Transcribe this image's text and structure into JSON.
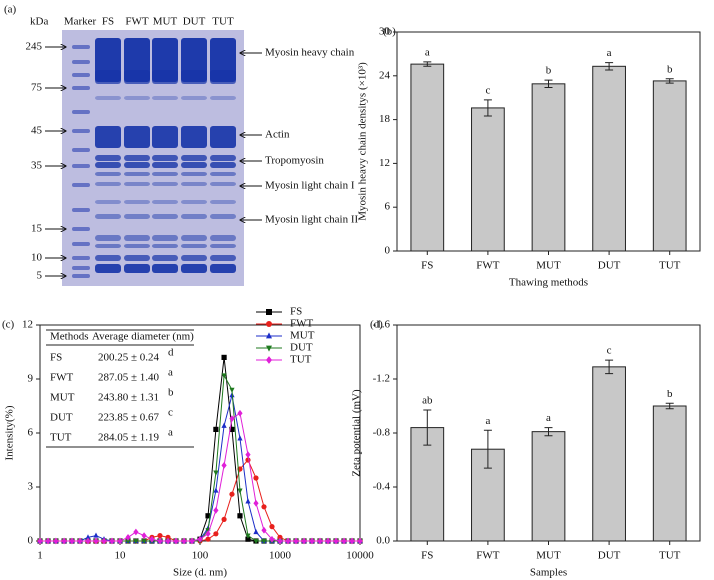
{
  "gel": {
    "panel_label": "(a)",
    "unit_label": "kDa",
    "marker_label": "Marker",
    "lanes": [
      "FS",
      "FWT",
      "MUT",
      "DUT",
      "TUT"
    ],
    "marker_sizes": [
      "245",
      "75",
      "45",
      "35",
      "15",
      "10",
      "5"
    ],
    "bands": [
      "Myosin heavy chain",
      "Actin",
      "Tropomyosin",
      "Myosin light chain I",
      "Myosin light chain II"
    ]
  },
  "chart_data": [
    {
      "type": "bar",
      "panel_label": "(b)",
      "x_label": "Thawing methods",
      "y_label": "Myosin heavy chain densitys (×10³)",
      "categories": [
        "FS",
        "FWT",
        "MUT",
        "DUT",
        "TUT"
      ],
      "values": [
        25.6,
        19.6,
        22.9,
        25.3,
        23.3
      ],
      "errors": [
        0.3,
        1.1,
        0.5,
        0.5,
        0.3
      ],
      "labels": [
        "a",
        "c",
        "b",
        "a",
        "b"
      ],
      "color": "#c8c8c8",
      "ylim": [
        0,
        30
      ],
      "yticks": [
        0,
        6,
        12,
        18,
        24,
        30
      ]
    },
    {
      "type": "line",
      "panel_label": "(c)",
      "x_label": "Size (d. nm)",
      "y_label": "Intensity(%)",
      "x_scale": "log",
      "xlim": [
        1,
        10000
      ],
      "xticks": [
        1,
        10,
        100,
        1000,
        10000
      ],
      "ylim": [
        0,
        12
      ],
      "yticks": [
        0,
        3,
        6,
        9,
        12
      ],
      "legend": "upper right",
      "x": [
        1,
        1.26,
        1.58,
        2.0,
        2.51,
        3.16,
        3.98,
        5.01,
        6.31,
        7.94,
        10,
        12.6,
        15.8,
        20.0,
        25.1,
        31.6,
        39.8,
        50.1,
        63.1,
        79.4,
        100,
        126,
        158,
        200,
        251,
        316,
        398,
        501,
        631,
        794,
        1000,
        1259,
        1585,
        1995,
        2512,
        3162,
        3981,
        5012,
        6310,
        7943,
        10000
      ],
      "series": [
        {
          "name": "FS",
          "color": "#000000",
          "marker": "square",
          "values": [
            0,
            0,
            0,
            0,
            0,
            0,
            0,
            0,
            0,
            0,
            0,
            0,
            0,
            0,
            0,
            0,
            0,
            0,
            0,
            0,
            0.1,
            1.4,
            6.2,
            10.2,
            6.2,
            1.4,
            0.1,
            0,
            0,
            0,
            0,
            0,
            0,
            0,
            0,
            0,
            0,
            0,
            0,
            0,
            0
          ]
        },
        {
          "name": "FWT",
          "color": "#e8201c",
          "marker": "circle",
          "values": [
            0,
            0,
            0,
            0,
            0,
            0,
            0,
            0,
            0,
            0,
            0,
            0,
            0,
            0,
            0.2,
            0.3,
            0.2,
            0,
            0,
            0,
            0,
            0.1,
            0.4,
            1.2,
            2.6,
            4.0,
            4.5,
            3.5,
            1.9,
            0.8,
            0.2,
            0,
            0,
            0,
            0,
            0,
            0,
            0,
            0,
            0,
            0
          ]
        },
        {
          "name": "MUT",
          "color": "#1c2ec8",
          "marker": "triangle-up",
          "values": [
            0,
            0,
            0,
            0,
            0,
            0,
            0.2,
            0.3,
            0.1,
            0,
            0,
            0,
            0,
            0,
            0,
            0,
            0,
            0,
            0,
            0,
            0.1,
            0.7,
            2.8,
            6.4,
            8.1,
            5.7,
            2.2,
            0.5,
            0,
            0,
            0,
            0,
            0,
            0,
            0,
            0,
            0,
            0,
            0,
            0,
            0
          ]
        },
        {
          "name": "DUT",
          "color": "#1f7a1f",
          "marker": "triangle-down",
          "values": [
            0,
            0,
            0,
            0,
            0,
            0,
            0,
            0,
            0,
            0,
            0,
            0,
            0,
            0,
            0,
            0,
            0,
            0,
            0,
            0,
            0,
            0.6,
            3.8,
            9.2,
            8.4,
            2.8,
            0.3,
            0,
            0,
            0,
            0,
            0,
            0,
            0,
            0,
            0,
            0,
            0,
            0,
            0,
            0
          ]
        },
        {
          "name": "TUT",
          "color": "#e020d8",
          "marker": "diamond",
          "values": [
            0,
            0,
            0,
            0,
            0,
            0,
            0,
            0,
            0,
            0,
            0,
            0.2,
            0.5,
            0.3,
            0.1,
            0,
            0,
            0,
            0,
            0,
            0.1,
            0.4,
            1.7,
            4.2,
            6.8,
            7.1,
            4.8,
            2.1,
            0.6,
            0.1,
            0,
            0,
            0,
            0,
            0,
            0,
            0,
            0,
            0,
            0,
            0
          ]
        }
      ],
      "table": {
        "header": [
          "Methods",
          "Average diameter (nm)"
        ],
        "rows": [
          [
            "FS",
            "200.25 ± 0.24",
            "d"
          ],
          [
            "FWT",
            "287.05 ± 1.40",
            "a"
          ],
          [
            "MUT",
            "243.80 ± 1.31",
            "b"
          ],
          [
            "DUT",
            "223.85 ± 0.67",
            "c"
          ],
          [
            "TUT",
            "284.05 ± 1.19",
            "a"
          ]
        ]
      }
    },
    {
      "type": "bar",
      "panel_label": "(d)",
      "x_label": "Samples",
      "y_label": "Zeta potential (mV)",
      "categories": [
        "FS",
        "FWT",
        "MUT",
        "DUT",
        "TUT"
      ],
      "values": [
        -0.84,
        -0.68,
        -0.81,
        -1.29,
        -1.0
      ],
      "errors": [
        0.13,
        0.14,
        0.03,
        0.05,
        0.02
      ],
      "labels": [
        "ab",
        "a",
        "a",
        "c",
        "b"
      ],
      "color": "#c8c8c8",
      "ylim": [
        0,
        -1.6
      ],
      "yticks": [
        {
          "value": 0,
          "label": "0.0"
        },
        -0.4,
        -0.8,
        -1.2,
        -1.6
      ]
    }
  ]
}
